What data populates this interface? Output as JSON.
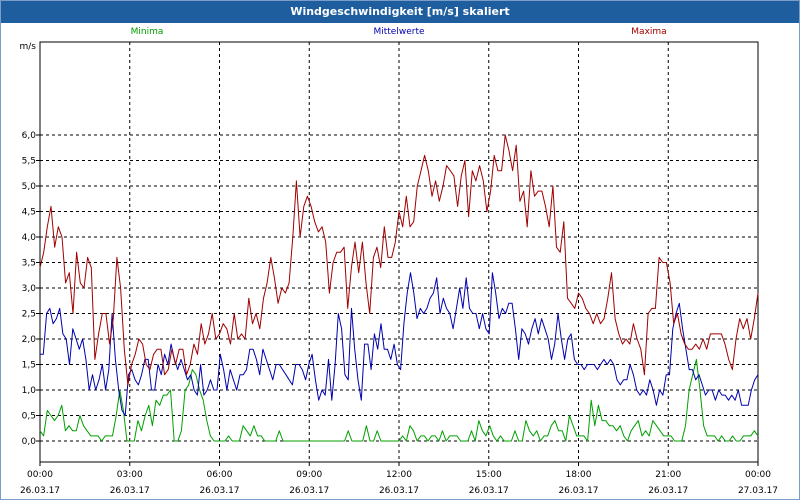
{
  "window": {
    "title": "Windgeschwindigkeit [m/s] skaliert"
  },
  "colors": {
    "minima": "#00a000",
    "mean": "#0000b0",
    "maxima": "#a00000",
    "titlebar": "#1e5e9e"
  },
  "chart_data": {
    "type": "line",
    "title": "Windgeschwindigkeit [m/s] skaliert",
    "ylabel": "m/s",
    "ylim": [
      0,
      6.0
    ],
    "y_ticks": [
      "0,0",
      "0,5",
      "1,0",
      "1,5",
      "2,0",
      "2,5",
      "3,0",
      "3,5",
      "4,0",
      "4,5",
      "5,0",
      "5,5",
      "6,0"
    ],
    "x_range_hours": [
      0,
      24
    ],
    "x_ticks": [
      {
        "time": "00:00",
        "date": "26.03.17"
      },
      {
        "time": "03:00",
        "date": "26.03.17"
      },
      {
        "time": "06:00",
        "date": "26.03.17"
      },
      {
        "time": "09:00",
        "date": "26.03.17"
      },
      {
        "time": "12:00",
        "date": "26.03.17"
      },
      {
        "time": "15:00",
        "date": "26.03.17"
      },
      {
        "time": "18:00",
        "date": "26.03.17"
      },
      {
        "time": "21:00",
        "date": "26.03.17"
      },
      {
        "time": "00:00",
        "date": "27.03.17"
      }
    ],
    "grid": true,
    "legend_position": "top",
    "series": [
      {
        "name": "Minima",
        "color": "#00a000",
        "values": [
          0.2,
          0.1,
          0.6,
          0.5,
          0.4,
          0.5,
          0.7,
          0.2,
          0.3,
          0.2,
          0.2,
          0.5,
          0.3,
          0.2,
          0.1,
          0.1,
          0.1,
          0.0,
          0.1,
          0.1,
          0.1,
          0.5,
          1.0,
          0.6,
          0.0,
          0.0,
          0.0,
          0.4,
          0.2,
          0.5,
          0.7,
          0.3,
          0.8,
          0.7,
          0.9,
          0.9,
          1.0,
          0.0,
          0.0,
          0.2,
          1.0,
          1.1,
          1.4,
          1.3,
          1.0,
          0.8,
          0.4,
          0.1,
          0.0,
          0.0,
          0.0,
          0.0,
          0.1,
          0.0,
          0.0,
          0.0,
          0.3,
          0.2,
          0.1,
          0.3,
          0.1,
          0.1,
          0.0,
          0.0,
          0.0,
          0.0,
          0.2,
          0.0,
          0.0,
          0.0,
          0.0,
          0.0,
          0.0,
          0.0,
          0.0,
          0.0,
          0.0,
          0.0,
          0.0,
          0.0,
          0.0,
          0.0,
          0.0,
          0.0,
          0.0,
          0.2,
          0.0,
          0.0,
          0.0,
          0.0,
          0.3,
          0.0,
          0.0,
          0.2,
          0.0,
          0.0,
          0.0,
          0.0,
          0.0,
          0.0,
          0.1,
          0.0,
          0.3,
          0.2,
          0.0,
          0.1,
          0.1,
          0.0,
          0.1,
          0.1,
          0.0,
          0.2,
          0.0,
          0.1,
          0.1,
          0.1,
          0.0,
          0.0,
          0.0,
          0.2,
          0.0,
          0.4,
          0.2,
          0.1,
          0.3,
          0.1,
          0.0,
          0.1,
          0.0,
          0.0,
          0.0,
          0.2,
          0.0,
          0.0,
          0.4,
          0.2,
          0.1,
          0.2,
          0.0,
          0.1,
          0.1,
          0.3,
          0.4,
          0.2,
          0.2,
          0.0,
          0.5,
          0.3,
          0.1,
          0.1,
          0.1,
          0.0,
          0.8,
          0.3,
          0.7,
          0.4,
          0.4,
          0.3,
          0.3,
          0.2,
          0.3,
          0.1,
          0.0,
          0.2,
          0.3,
          0.4,
          0.1,
          0.2,
          0.1,
          0.4,
          0.3,
          0.2,
          0.1,
          0.1,
          0.1,
          0.0,
          0.0,
          0.0,
          0.3,
          1.0,
          1.3,
          1.6,
          1.0,
          0.3,
          0.1,
          0.1,
          0.1,
          0.0,
          0.1,
          0.0,
          0.0,
          0.1,
          0.0,
          0.0,
          0.1,
          0.1,
          0.1,
          0.2,
          0.1
        ]
      },
      {
        "name": "Mittelwerte",
        "color": "#0000b0",
        "values": [
          1.7,
          1.7,
          2.5,
          2.6,
          2.3,
          2.4,
          2.6,
          2.1,
          2.0,
          1.5,
          2.2,
          2.0,
          1.8,
          2.0,
          1.6,
          1.0,
          1.3,
          1.0,
          1.2,
          1.5,
          1.0,
          1.4,
          2.5,
          1.6,
          1.0,
          0.6,
          0.5,
          1.3,
          1.4,
          1.2,
          1.1,
          1.3,
          1.6,
          1.6,
          1.0,
          1.0,
          1.5,
          1.3,
          1.7,
          1.5,
          1.9,
          1.6,
          1.4,
          1.6,
          1.4,
          1.2,
          1.3,
          1.0,
          0.9,
          1.5,
          0.9,
          1.0,
          1.2,
          1.0,
          1.0,
          1.7,
          1.4,
          1.0,
          1.4,
          1.2,
          1.0,
          1.3,
          1.3,
          1.4,
          1.8,
          1.8,
          1.6,
          1.3,
          1.8,
          1.6,
          1.4,
          1.2,
          1.5,
          1.5,
          1.4,
          1.3,
          1.2,
          1.1,
          1.5,
          1.5,
          1.4,
          1.2,
          1.5,
          1.7,
          1.2,
          0.8,
          1.0,
          0.9,
          1.6,
          0.8,
          1.5,
          2.5,
          2.2,
          1.3,
          1.2,
          2.6,
          1.8,
          1.2,
          0.8,
          1.9,
          1.9,
          1.4,
          2.1,
          1.8,
          2.3,
          1.8,
          1.8,
          1.6,
          1.9,
          1.5,
          1.4,
          2.3,
          2.9,
          3.3,
          2.9,
          2.4,
          2.6,
          2.5,
          2.6,
          2.8,
          2.9,
          3.2,
          2.5,
          2.8,
          2.6,
          2.5,
          2.2,
          2.6,
          3.0,
          2.6,
          3.2,
          2.6,
          2.5,
          2.5,
          2.2,
          2.5,
          2.2,
          2.1,
          3.3,
          2.9,
          2.4,
          2.6,
          2.5,
          2.7,
          2.7,
          2.2,
          1.6,
          2.2,
          2.1,
          1.9,
          2.2,
          2.4,
          2.1,
          2.4,
          2.2,
          2.0,
          1.6,
          1.9,
          2.5,
          2.0,
          1.6,
          2.0,
          2.1,
          1.6,
          1.5,
          1.5,
          1.4,
          1.5,
          1.5,
          1.5,
          1.4,
          1.5,
          1.6,
          1.5,
          1.6,
          1.5,
          1.2,
          1.1,
          1.2,
          1.2,
          1.5,
          1.3,
          1.0,
          0.9,
          1.0,
          0.9,
          1.2,
          1.0,
          0.7,
          1.0,
          0.9,
          1.3,
          1.3,
          2.2,
          2.5,
          2.7,
          2.2,
          1.8,
          1.4,
          1.4,
          1.2,
          1.3,
          1.1,
          0.9,
          1.0,
          1.0,
          0.8,
          1.0,
          0.9,
          0.9,
          0.8,
          0.9,
          0.8,
          1.0,
          0.7,
          0.7,
          0.7,
          1.0,
          1.2,
          1.3
        ]
      },
      {
        "name": "Maxima",
        "color": "#a00000",
        "values": [
          3.4,
          3.7,
          4.2,
          4.6,
          3.8,
          4.2,
          4.0,
          3.1,
          3.3,
          2.5,
          3.7,
          3.1,
          3.0,
          3.6,
          3.4,
          1.6,
          2.1,
          2.5,
          2.5,
          1.9,
          2.4,
          3.6,
          3.0,
          1.8,
          1.1,
          1.5,
          1.7,
          2.0,
          1.9,
          1.5,
          1.4,
          1.7,
          1.8,
          1.8,
          1.3,
          1.4,
          1.8,
          1.5,
          1.8,
          1.8,
          1.3,
          1.5,
          1.9,
          1.7,
          2.3,
          1.9,
          2.1,
          2.5,
          2.0,
          2.1,
          2.3,
          2.2,
          1.9,
          2.5,
          2.0,
          2.1,
          2.0,
          2.8,
          2.3,
          2.5,
          2.2,
          2.8,
          3.1,
          3.6,
          3.2,
          2.7,
          3.0,
          2.9,
          3.1,
          4.0,
          5.1,
          4.0,
          4.6,
          4.8,
          4.6,
          4.3,
          4.1,
          4.2,
          3.9,
          2.9,
          3.5,
          3.7,
          3.7,
          3.8,
          2.6,
          3.4,
          3.9,
          3.3,
          3.9,
          3.1,
          2.5,
          3.6,
          3.8,
          3.4,
          4.2,
          3.6,
          3.6,
          3.9,
          4.5,
          4.2,
          4.8,
          4.2,
          4.3,
          5.0,
          5.3,
          5.6,
          5.3,
          4.8,
          5.1,
          4.7,
          5.0,
          5.4,
          5.3,
          5.2,
          4.6,
          5.2,
          5.5,
          4.4,
          5.3,
          5.1,
          5.4,
          5.1,
          4.5,
          4.9,
          5.6,
          5.3,
          5.3,
          6.0,
          5.7,
          5.3,
          5.8,
          4.7,
          4.9,
          4.2,
          5.3,
          4.8,
          4.9,
          4.9,
          4.6,
          4.2,
          5.0,
          3.8,
          3.7,
          4.3,
          2.8,
          2.7,
          2.6,
          2.9,
          2.8,
          2.6,
          2.5,
          2.3,
          2.5,
          2.3,
          2.4,
          2.8,
          3.3,
          2.4,
          2.1,
          1.9,
          2.0,
          1.9,
          2.3,
          2.0,
          1.8,
          1.3,
          2.5,
          2.6,
          2.6,
          3.6,
          3.5,
          3.5,
          3.1,
          2.3,
          2.5,
          2.1,
          1.9,
          1.8,
          1.8,
          1.9,
          1.8,
          2.0,
          1.8,
          2.1,
          2.1,
          2.1,
          2.1,
          1.9,
          1.6,
          1.4,
          2.0,
          2.4,
          2.2,
          2.4,
          2.0,
          2.4,
          2.9
        ]
      }
    ]
  }
}
